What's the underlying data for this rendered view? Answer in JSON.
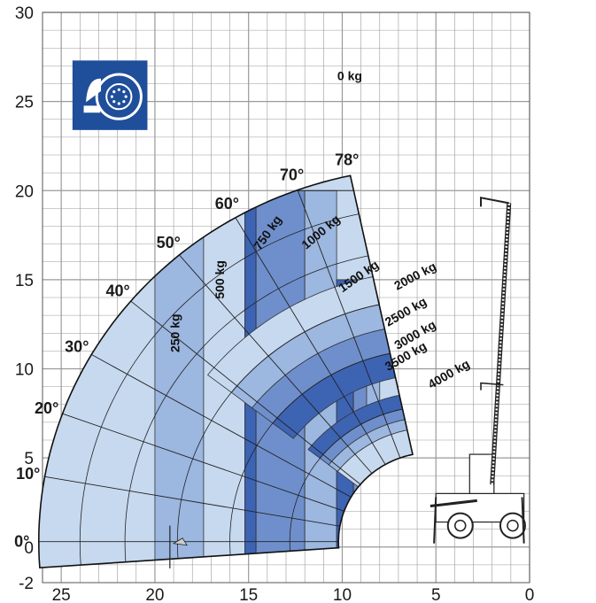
{
  "chart_data": {
    "type": "load-chart",
    "x_axis": {
      "reversed": true,
      "range": [
        26,
        0
      ],
      "ticks": [
        "25",
        "20",
        "15",
        "10",
        "5",
        "0"
      ],
      "tick_values": [
        25,
        20,
        15,
        10,
        5,
        0
      ],
      "minor_step": 1
    },
    "y_axis": {
      "range": [
        -2,
        30
      ],
      "ticks": [
        "30",
        "25",
        "20",
        "15",
        "10",
        "5",
        "0",
        "-2"
      ],
      "tick_values": [
        30,
        25,
        20,
        15,
        10,
        5,
        0,
        -2
      ],
      "minor_step": 1
    },
    "grid": true,
    "pivot": [
      5.2,
      0.3
    ],
    "boom_angles": [
      {
        "label": "0°",
        "deg": 0
      },
      {
        "label": "10°",
        "deg": 10
      },
      {
        "label": "20°",
        "deg": 20
      },
      {
        "label": "30°",
        "deg": 30
      },
      {
        "label": "40°",
        "deg": 40
      },
      {
        "label": "50°",
        "deg": 50
      },
      {
        "label": "60°",
        "deg": 60
      },
      {
        "label": "70°",
        "deg": 70
      },
      {
        "label": "78°",
        "deg": 78
      }
    ],
    "load_zones": [
      {
        "label": "0 kg",
        "color": "#c6d9ef"
      },
      {
        "label": "250 kg",
        "color": "#9cb7e0"
      },
      {
        "label": "500 kg",
        "color": "#c6d9ef"
      },
      {
        "label": "750 kg",
        "color": "#3d63b3"
      },
      {
        "label": "1000 kg",
        "color": "#6f8fcc"
      },
      {
        "label": "1500 kg",
        "color": "#9cb7e0"
      },
      {
        "label": "2000 kg",
        "color": "#c6d9ef"
      },
      {
        "label": "2500 kg",
        "color": "#3d63b3"
      },
      {
        "label": "3000 kg",
        "color": "#6f8fcc"
      },
      {
        "label": "3500 kg",
        "color": "#9cb7e0"
      },
      {
        "label": "4000 kg",
        "color": "#c6d9ef"
      }
    ],
    "icon": {
      "name": "rotating-tire-icon",
      "color": "#1f4e9a"
    },
    "colors": {
      "envelope_fill": "#c6d9ef",
      "grid": "#9a9a9a",
      "outline": "#111111"
    }
  }
}
